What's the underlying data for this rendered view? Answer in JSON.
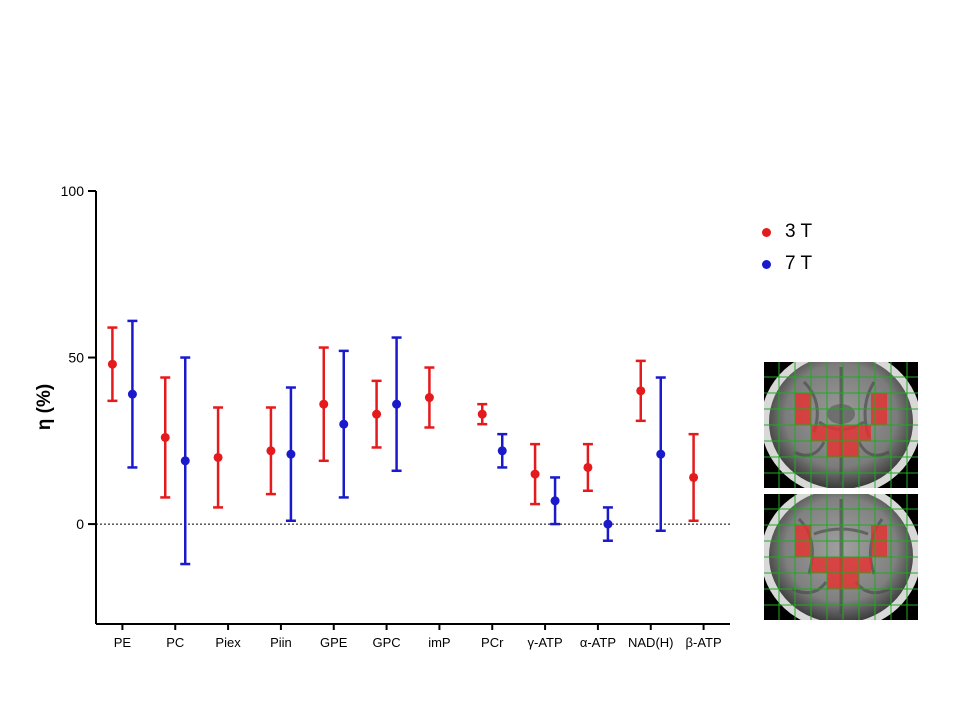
{
  "chart_data": {
    "type": "scatter",
    "ylabel": "η (%)",
    "ylim": [
      -30,
      100
    ],
    "yticks": [
      0,
      50,
      100
    ],
    "reference_line": 0,
    "grid": false,
    "legend_position": "top-right",
    "categories": [
      "PE",
      "PC",
      "Piex",
      "Piin",
      "GPE",
      "GPC",
      "imP",
      "PCr",
      "γ-ATP",
      "α-ATP",
      "NAD(H)",
      "β-ATP"
    ],
    "series": [
      {
        "name": "3 T",
        "color": "#e41a1c",
        "values": [
          48,
          26,
          20,
          22,
          36,
          33,
          38,
          33,
          15,
          17,
          40,
          14
        ],
        "lower": [
          37,
          8,
          5,
          9,
          19,
          23,
          29,
          30,
          6,
          10,
          31,
          1
        ],
        "upper": [
          59,
          44,
          35,
          35,
          53,
          43,
          47,
          36,
          24,
          24,
          49,
          27
        ]
      },
      {
        "name": "7 T",
        "color": "#1a1acc",
        "values": [
          39,
          19,
          null,
          21,
          30,
          36,
          null,
          22,
          7,
          0,
          21,
          null
        ],
        "lower": [
          17,
          -12,
          null,
          1,
          8,
          16,
          null,
          17,
          0,
          -5,
          -2,
          null
        ],
        "upper": [
          61,
          50,
          null,
          41,
          52,
          56,
          null,
          27,
          14,
          5,
          44,
          null
        ]
      }
    ]
  }
}
